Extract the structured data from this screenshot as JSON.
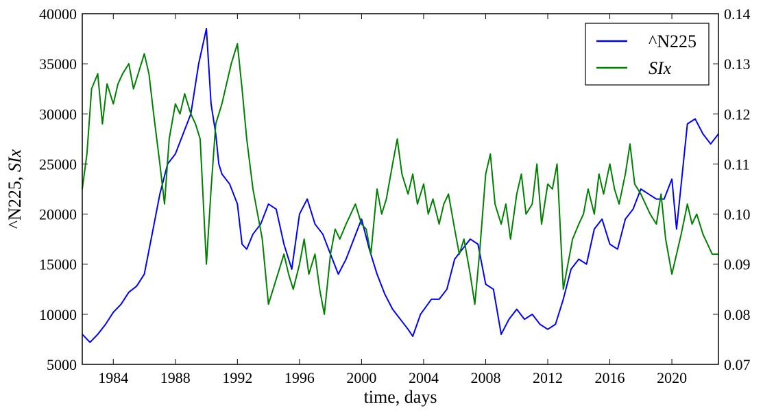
{
  "chart_data": {
    "type": "line",
    "xlabel": "time, days",
    "ylabel_left": "^N225, ",
    "ylabel_left_italic": "SIx",
    "xlim": [
      1982.0,
      2023.0
    ],
    "ylim_left": [
      5000,
      40000
    ],
    "ylim_right": [
      0.07,
      0.14
    ],
    "x_ticks": [
      1984,
      1988,
      1992,
      1996,
      2000,
      2004,
      2008,
      2012,
      2016,
      2020
    ],
    "y_left_ticks": [
      5000,
      10000,
      15000,
      20000,
      25000,
      30000,
      35000,
      40000
    ],
    "y_right_ticks": [
      "0.07",
      "0.08",
      "0.09",
      "0.10",
      "0.11",
      "0.12",
      "0.13",
      "0.14"
    ],
    "legend_position": "top-right",
    "grid": false,
    "series": [
      {
        "name": "^N225",
        "axis": "left",
        "color": "#0000ff",
        "x": [
          1982.0,
          1982.5,
          1983.0,
          1983.5,
          1984.0,
          1984.5,
          1985.0,
          1985.5,
          1986.0,
          1986.5,
          1987.0,
          1987.5,
          1988.0,
          1988.5,
          1989.0,
          1989.5,
          1990.0,
          1990.3,
          1990.6,
          1990.8,
          1991.0,
          1991.5,
          1992.0,
          1992.3,
          1992.6,
          1993.0,
          1993.5,
          1994.0,
          1994.5,
          1995.0,
          1995.5,
          1996.0,
          1996.5,
          1997.0,
          1997.5,
          1998.0,
          1998.5,
          1999.0,
          1999.5,
          2000.0,
          2000.5,
          2001.0,
          2001.5,
          2002.0,
          2002.5,
          2003.0,
          2003.3,
          2003.8,
          2004.5,
          2005.0,
          2005.5,
          2006.0,
          2006.5,
          2007.0,
          2007.5,
          2008.0,
          2008.5,
          2009.0,
          2009.5,
          2010.0,
          2010.5,
          2011.0,
          2011.5,
          2012.0,
          2012.5,
          2013.0,
          2013.5,
          2014.0,
          2014.5,
          2015.0,
          2015.5,
          2016.0,
          2016.5,
          2017.0,
          2017.5,
          2018.0,
          2018.5,
          2019.0,
          2019.5,
          2020.0,
          2020.3,
          2020.6,
          2021.0,
          2021.5,
          2022.0,
          2022.5,
          2023.0
        ],
        "values": [
          8000,
          7200,
          8000,
          9000,
          10200,
          11000,
          12200,
          12800,
          14000,
          18000,
          22000,
          25000,
          26000,
          28000,
          30000,
          35000,
          38500,
          31000,
          28000,
          25000,
          24000,
          23000,
          21000,
          17000,
          16500,
          18000,
          19000,
          21000,
          20500,
          17000,
          14500,
          20000,
          21500,
          19000,
          18000,
          16000,
          14000,
          15500,
          17500,
          19500,
          16500,
          14000,
          12000,
          10500,
          9500,
          8500,
          7800,
          10000,
          11500,
          11500,
          12500,
          15500,
          16500,
          17500,
          17000,
          13000,
          12500,
          8000,
          9500,
          10500,
          9500,
          10000,
          9000,
          8500,
          9000,
          11500,
          14500,
          15500,
          15000,
          18500,
          19500,
          17000,
          16500,
          19500,
          20500,
          22500,
          22000,
          21500,
          21500,
          23500,
          18500,
          23000,
          29000,
          29500,
          28000,
          27000,
          28000
        ]
      },
      {
        "name": "SIx",
        "axis": "right",
        "color": "#008000",
        "x": [
          1982.0,
          1982.3,
          1982.6,
          1983.0,
          1983.3,
          1983.6,
          1984.0,
          1984.3,
          1984.6,
          1985.0,
          1985.3,
          1985.6,
          1986.0,
          1986.3,
          1986.6,
          1987.0,
          1987.3,
          1987.6,
          1988.0,
          1988.3,
          1988.6,
          1989.0,
          1989.3,
          1989.6,
          1990.0,
          1990.3,
          1990.6,
          1991.0,
          1991.3,
          1991.6,
          1992.0,
          1992.3,
          1992.6,
          1993.0,
          1993.3,
          1993.6,
          1994.0,
          1994.3,
          1994.6,
          1995.0,
          1995.3,
          1995.6,
          1996.0,
          1996.3,
          1996.6,
          1997.0,
          1997.3,
          1997.6,
          1998.0,
          1998.3,
          1998.6,
          1999.0,
          1999.3,
          1999.6,
          2000.0,
          2000.3,
          2000.6,
          2001.0,
          2001.3,
          2001.6,
          2002.0,
          2002.3,
          2002.6,
          2003.0,
          2003.3,
          2003.6,
          2004.0,
          2004.3,
          2004.6,
          2005.0,
          2005.3,
          2005.6,
          2006.0,
          2006.3,
          2006.6,
          2007.0,
          2007.3,
          2007.6,
          2008.0,
          2008.3,
          2008.6,
          2009.0,
          2009.3,
          2009.6,
          2010.0,
          2010.3,
          2010.6,
          2011.0,
          2011.3,
          2011.6,
          2012.0,
          2012.3,
          2012.6,
          2013.0,
          2013.3,
          2013.6,
          2014.0,
          2014.3,
          2014.6,
          2015.0,
          2015.3,
          2015.6,
          2016.0,
          2016.3,
          2016.6,
          2017.0,
          2017.3,
          2017.6,
          2018.0,
          2018.3,
          2018.6,
          2019.0,
          2019.3,
          2019.6,
          2020.0,
          2020.3,
          2020.6,
          2021.0,
          2021.3,
          2021.6,
          2022.0,
          2022.3,
          2022.6,
          2023.0
        ],
        "values": [
          0.105,
          0.112,
          0.125,
          0.128,
          0.118,
          0.126,
          0.122,
          0.126,
          0.128,
          0.13,
          0.125,
          0.128,
          0.132,
          0.128,
          0.12,
          0.11,
          0.102,
          0.115,
          0.122,
          0.12,
          0.124,
          0.12,
          0.118,
          0.115,
          0.09,
          0.105,
          0.118,
          0.122,
          0.126,
          0.13,
          0.134,
          0.125,
          0.115,
          0.105,
          0.1,
          0.095,
          0.082,
          0.085,
          0.088,
          0.092,
          0.088,
          0.085,
          0.09,
          0.095,
          0.088,
          0.092,
          0.085,
          0.08,
          0.092,
          0.097,
          0.095,
          0.098,
          0.1,
          0.102,
          0.098,
          0.097,
          0.092,
          0.105,
          0.1,
          0.103,
          0.11,
          0.115,
          0.108,
          0.104,
          0.108,
          0.102,
          0.106,
          0.1,
          0.103,
          0.098,
          0.102,
          0.104,
          0.097,
          0.092,
          0.095,
          0.088,
          0.082,
          0.092,
          0.108,
          0.112,
          0.102,
          0.098,
          0.102,
          0.095,
          0.104,
          0.108,
          0.1,
          0.102,
          0.11,
          0.098,
          0.106,
          0.105,
          0.11,
          0.085,
          0.09,
          0.095,
          0.098,
          0.1,
          0.105,
          0.1,
          0.108,
          0.104,
          0.11,
          0.105,
          0.102,
          0.108,
          0.114,
          0.106,
          0.104,
          0.102,
          0.1,
          0.098,
          0.104,
          0.095,
          0.088,
          0.092,
          0.096,
          0.102,
          0.098,
          0.1,
          0.096,
          0.094,
          0.092,
          0.092
        ]
      }
    ]
  }
}
